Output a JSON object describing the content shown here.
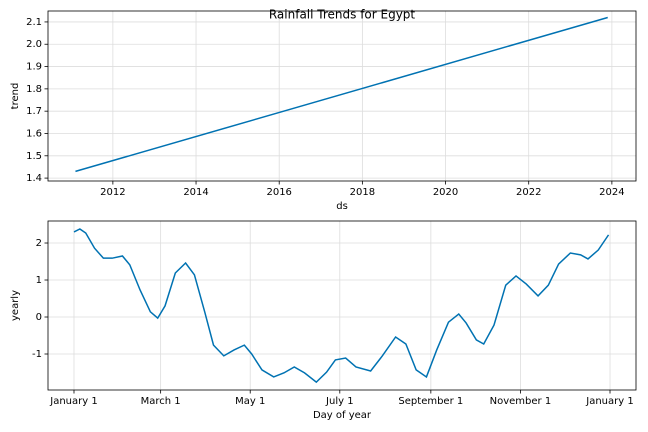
{
  "chart_data": [
    {
      "type": "line",
      "title": "Rainfall Trends for Egypt",
      "x_label": "ds",
      "y_label": "trend",
      "x": [
        2011.1,
        2023.9
      ],
      "series": [
        {
          "color": "#0072B2",
          "values": [
            1.43,
            2.12
          ]
        }
      ],
      "xlim": [
        2010.44,
        2024.58
      ],
      "ylim": [
        1.387,
        2.149
      ],
      "xticks": [
        2012,
        2014,
        2016,
        2018,
        2020,
        2022,
        2024
      ],
      "yticks": [
        1.4,
        1.5,
        1.6,
        1.7,
        1.8,
        1.9,
        {
          "value": 2,
          "label": "2.0"
        },
        2.1
      ],
      "grid": true
    },
    {
      "type": "line",
      "x_label": "Day of year",
      "y_label": "yearly",
      "x": [
        0,
        4,
        8,
        14,
        20,
        26,
        33,
        38,
        45,
        52,
        57,
        62,
        69,
        76,
        82,
        89,
        95,
        102,
        109,
        116,
        121,
        128,
        136,
        143,
        150,
        157,
        165,
        172,
        178,
        185,
        192,
        202,
        210,
        219,
        226,
        233,
        240,
        247,
        255,
        262,
        267,
        274,
        279,
        286,
        294,
        301,
        308,
        316,
        323,
        330,
        338,
        345,
        350,
        357,
        364
      ],
      "series": [
        {
          "color": "#0072B2",
          "values": [
            2.3,
            2.38,
            2.27,
            1.86,
            1.59,
            1.59,
            1.65,
            1.41,
            0.73,
            0.14,
            -0.03,
            0.3,
            1.19,
            1.46,
            1.14,
            0.14,
            -0.76,
            -1.05,
            -0.89,
            -0.76,
            -1.0,
            -1.43,
            -1.62,
            -1.51,
            -1.35,
            -1.51,
            -1.76,
            -1.49,
            -1.16,
            -1.11,
            -1.35,
            -1.46,
            -1.05,
            -0.54,
            -0.73,
            -1.43,
            -1.62,
            -0.89,
            -0.14,
            0.08,
            -0.16,
            -0.62,
            -0.73,
            -0.22,
            0.86,
            1.11,
            0.89,
            0.57,
            0.86,
            1.43,
            1.73,
            1.68,
            1.57,
            1.81,
            2.22
          ]
        }
      ],
      "xlim": [
        -17.7,
        382.7
      ],
      "ylim": [
        -1.973,
        2.595
      ],
      "xticks": [
        {
          "value": 0,
          "label": "January 1"
        },
        {
          "value": 59,
          "label": "March 1"
        },
        {
          "value": 120,
          "label": "May 1"
        },
        {
          "value": 181,
          "label": "July 1"
        },
        {
          "value": 243,
          "label": "September 1"
        },
        {
          "value": 304,
          "label": "November 1"
        },
        {
          "value": 365,
          "label": "January 1"
        }
      ],
      "yticks": [
        -1,
        0,
        1,
        2
      ],
      "grid": true
    }
  ]
}
